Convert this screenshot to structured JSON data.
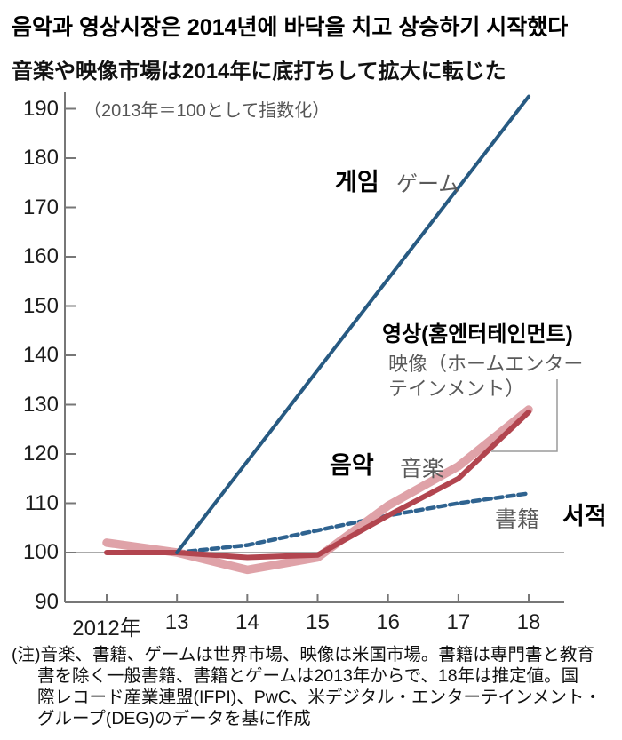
{
  "chart_data": {
    "type": "line",
    "title": "음악과 영상시장은 2014년에 바닥을 치고 상승하기 시작했다",
    "subtitle": "音楽や映像市場は2014年に底打ちして拡大に転じた",
    "unit_note": "（2013年＝100として指数化）",
    "x": [
      2012,
      2013,
      2014,
      2015,
      2016,
      2017,
      2018
    ],
    "x_tick_labels": [
      "2012年",
      "13",
      "14",
      "15",
      "16",
      "17",
      "18"
    ],
    "y_ticks": [
      190,
      180,
      170,
      160,
      150,
      140,
      130,
      120,
      110,
      100,
      90
    ],
    "ylim": [
      90,
      195
    ],
    "reference_line": 100,
    "grid": false,
    "legend_position": "inline-labels",
    "series": [
      {
        "id": "books",
        "label_ja": "書籍",
        "label_ko": "서적",
        "style": "dotted",
        "color": "#2f6390",
        "width": 4.5,
        "x": [
          2013,
          2014,
          2015,
          2016,
          2017,
          2018
        ],
        "values": [
          100,
          101.5,
          104.5,
          107.5,
          110,
          112
        ]
      },
      {
        "id": "video",
        "label_ko": "영상(홈엔터테인먼트)",
        "label_ja": "映像（ホームエンター\nテインメント）",
        "style": "solid",
        "color": "#dfa2a8",
        "width": 9.5,
        "x": [
          2012,
          2013,
          2014,
          2015,
          2016,
          2017,
          2018
        ],
        "values": [
          102,
          100,
          96.5,
          99,
          109.5,
          117.5,
          129
        ]
      },
      {
        "id": "music",
        "label_ko": "음악",
        "label_ja": "音楽",
        "style": "solid",
        "color": "#b2454f",
        "width": 6,
        "x": [
          2012,
          2013,
          2014,
          2015,
          2016,
          2017,
          2018
        ],
        "values": [
          100,
          100,
          99,
          99.5,
          107.5,
          115,
          128.5
        ]
      },
      {
        "id": "game",
        "label_ko": "게임",
        "label_ja": "ゲーム",
        "style": "solid",
        "color": "#275a82",
        "width": 4,
        "x": [
          2013,
          2014,
          2015,
          2016,
          2017,
          2018
        ],
        "values": [
          100,
          118.5,
          137,
          155.5,
          174,
          192.5
        ]
      }
    ]
  },
  "colors": {
    "axis": "#777777",
    "reference_line": "#8f8f8f",
    "callout": "#9a9a9a",
    "muted_label": "#5a5a5a"
  },
  "note": {
    "lines": [
      "(注)音楽、書籍、ゲームは世界市場、映像は米国市場。書籍は専門書と教育",
      "書を除く一般書籍、書籍とゲームは2013年からで、18年は推定値。国",
      "際レコード産業連盟(IFPI)、PwC、米デジタル・エンターテインメント・",
      "グループ(DEG)のデータを基に作成"
    ]
  }
}
